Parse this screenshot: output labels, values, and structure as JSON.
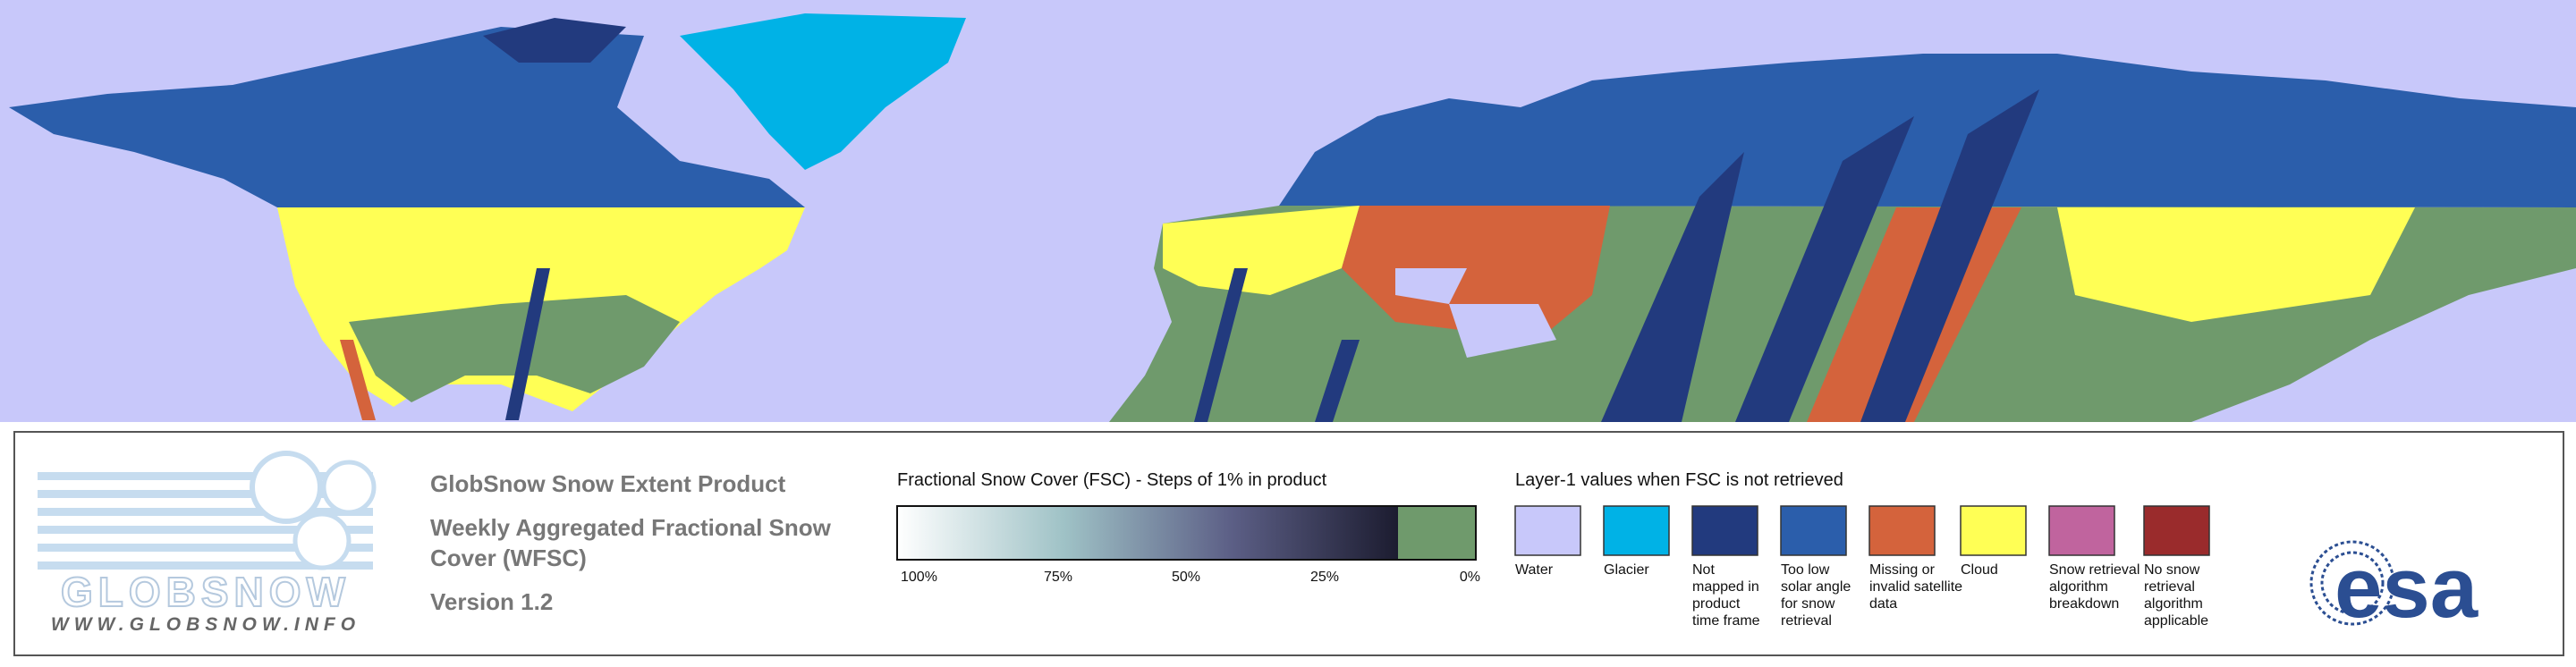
{
  "logo": {
    "name": "GLOBSNOW",
    "url": "WWW.GLOBSNOW.INFO"
  },
  "header": {
    "title": "GlobSnow Snow Extent Product",
    "subtitle_lines": [
      "Weekly Aggregated Fractional Snow",
      "Cover (WFSC)"
    ],
    "version": "Version 1.2"
  },
  "colorbar": {
    "title": "Fractional Snow Cover (FSC) - Steps of 1% in product",
    "colors": [
      "#ffffff",
      "#9fc2c6",
      "#5c5f86",
      "#1c1c30"
    ],
    "end_color": "#6f9a6c",
    "ticks": [
      "100%",
      "75%",
      "50%",
      "25%",
      "0%"
    ]
  },
  "layer1": {
    "title": "Layer-1 values when FSC is not retrieved",
    "items": [
      {
        "color": "#c8c8fa",
        "lines": [
          "Water"
        ]
      },
      {
        "color": "#00b2e6",
        "lines": [
          "Glacier"
        ]
      },
      {
        "color": "#223a7e",
        "lines": [
          "Not",
          "mapped in",
          "product",
          "time frame"
        ]
      },
      {
        "color": "#2b5eab",
        "lines": [
          "Too low",
          "solar angle",
          "for snow",
          "retrieval"
        ]
      },
      {
        "color": "#d4633c",
        "lines": [
          "Missing or",
          "invalid satellite",
          "data"
        ]
      },
      {
        "color": "#ffff55",
        "lines": [
          "Cloud"
        ]
      },
      {
        "color": "#c0649e",
        "lines": [
          "Snow retrieval",
          "algorithm",
          "breakdown"
        ]
      },
      {
        "color": "#9a2b2c",
        "lines": [
          "No snow",
          "retrieval",
          "algorithm",
          "applicable"
        ]
      }
    ]
  },
  "agency": "esa"
}
